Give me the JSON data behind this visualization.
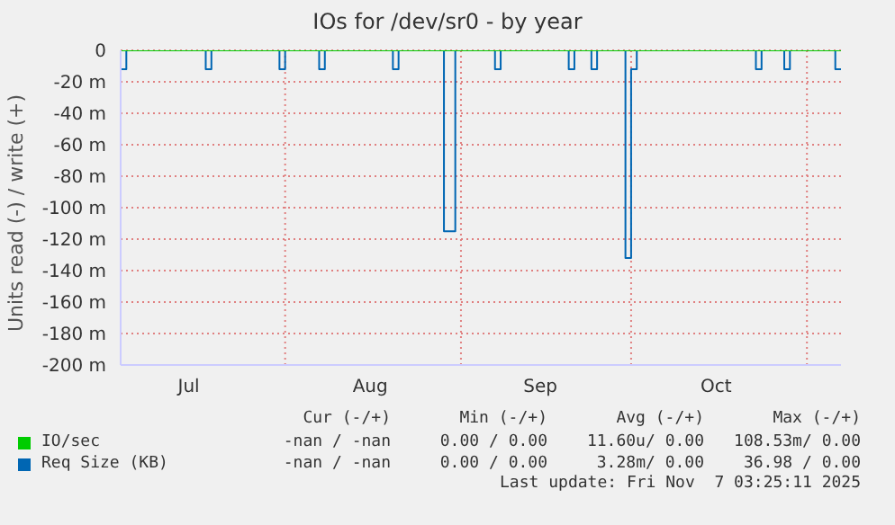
{
  "chart_data": {
    "type": "step",
    "title": "IOs for /dev/sr0 - by year",
    "ylabel": "Units read (-) / write (+)",
    "xlim": [
      "2025-07-03",
      "2025-11-07"
    ],
    "xticks": [
      {
        "value": "2025-07-15",
        "label": "Jul"
      },
      {
        "value": "2025-08-01",
        "label": null
      },
      {
        "value": "2025-08-16",
        "label": "Aug"
      },
      {
        "value": "2025-09-01",
        "label": null
      },
      {
        "value": "2025-09-15",
        "label": "Sep"
      },
      {
        "value": "2025-10-01",
        "label": null
      },
      {
        "value": "2025-10-16",
        "label": "Oct"
      },
      {
        "value": "2025-11-01",
        "label": null
      }
    ],
    "ylim": [
      -200,
      0
    ],
    "yticks": [
      0,
      {
        "value": -20,
        "label": "-20 m"
      },
      {
        "value": -40,
        "label": "-40 m"
      },
      {
        "value": -60,
        "label": "-60 m"
      },
      {
        "value": -80,
        "label": "-80 m"
      },
      {
        "value": -100,
        "label": "-100 m"
      },
      {
        "value": -120,
        "label": "-120 m"
      },
      {
        "value": -140,
        "label": "-140 m"
      },
      {
        "value": -160,
        "label": "-160 m"
      },
      {
        "value": -180,
        "label": "-180 m"
      },
      {
        "value": -200,
        "label": "-200 m"
      }
    ],
    "grid": true,
    "legend": "bottom",
    "series": [
      {
        "name": "IO/sec",
        "color": "#00cc00",
        "x": [
          "2025-07-03",
          "2025-11-07"
        ],
        "values": [
          0,
          0
        ]
      },
      {
        "name": "Req Size (KB)",
        "color": "#0066b3",
        "x": [
          "2025-07-03",
          "2025-07-04",
          "2025-07-18",
          "2025-07-19",
          "2025-07-31",
          "2025-08-01",
          "2025-08-07",
          "2025-08-08",
          "2025-08-20",
          "2025-08-21",
          "2025-08-29",
          "2025-08-31",
          "2025-09-07",
          "2025-09-08",
          "2025-09-20",
          "2025-09-21",
          "2025-09-24",
          "2025-09-25",
          "2025-09-30",
          "2025-10-01",
          "2025-10-02",
          "2025-10-23",
          "2025-10-24",
          "2025-10-28",
          "2025-10-29",
          "2025-11-06",
          "2025-11-07"
        ],
        "values": [
          -12,
          0,
          -12,
          0,
          -12,
          0,
          -12,
          0,
          -12,
          0,
          -115,
          0,
          -12,
          0,
          -12,
          0,
          -12,
          0,
          -132,
          -12,
          0,
          -12,
          0,
          -12,
          0,
          -12,
          -12
        ]
      }
    ],
    "annotations": [
      "Cur (-/+)",
      "Min (-/+)",
      "Avg (-/+)",
      "Max (-/+)",
      "-nan / -nan",
      "0.00 / 0.00",
      "11.60u/ 0.00",
      "108.53m/ 0.00",
      "-nan / -nan",
      "0.00 / 0.00",
      "3.28m/ 0.00",
      "36.98 / 0.00",
      "Last update: Fri Nov  7 03:25:11 2025"
    ]
  }
}
